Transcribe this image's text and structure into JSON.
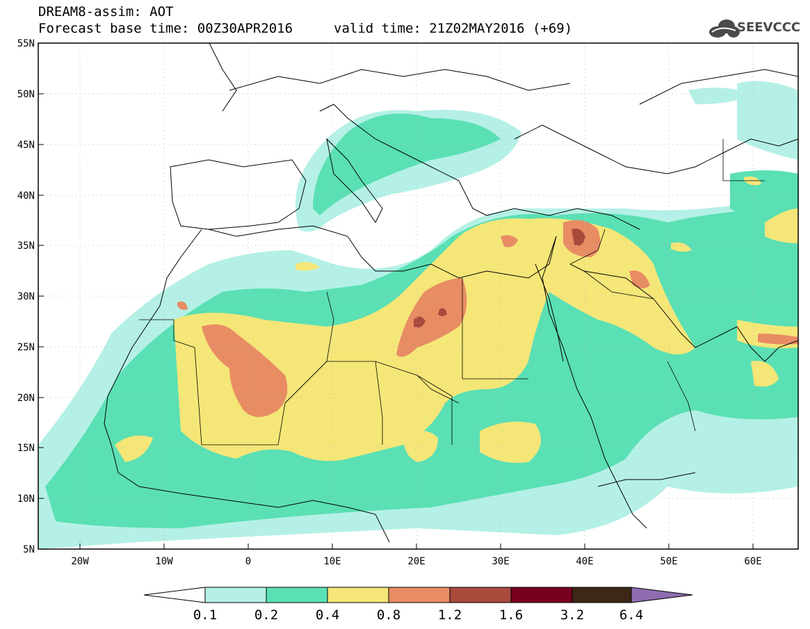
{
  "header": {
    "title": "DREAM8-assim: AOT",
    "base_time": "Forecast base time: 00Z30APR2016",
    "valid_time": "valid time: 21Z02MAY2016 (+69)"
  },
  "logo": {
    "name": "SEEVCCC",
    "icon": "cloud-icon"
  },
  "map": {
    "projection": "lat-lon",
    "lon_range": [
      -25,
      65
    ],
    "lat_range": [
      5,
      55
    ],
    "lat_ticks": [
      "5N",
      "10N",
      "15N",
      "20N",
      "25N",
      "30N",
      "35N",
      "40N",
      "45N",
      "50N",
      "55N"
    ],
    "lon_ticks": [
      "20W",
      "10W",
      "0",
      "10E",
      "20E",
      "30E",
      "40E",
      "50E",
      "60E"
    ],
    "grid": "dotted"
  },
  "colorbar": {
    "labels": [
      "0.1",
      "0.2",
      "0.4",
      "0.8",
      "1.2",
      "1.6",
      "3.2",
      "6.4"
    ],
    "colors": [
      "#ffffff",
      "#b4f0e6",
      "#5ae0b4",
      "#f5e678",
      "#e88c64",
      "#a84a3c",
      "#78001e",
      "#3c2814",
      "#8e6cb0"
    ]
  }
}
